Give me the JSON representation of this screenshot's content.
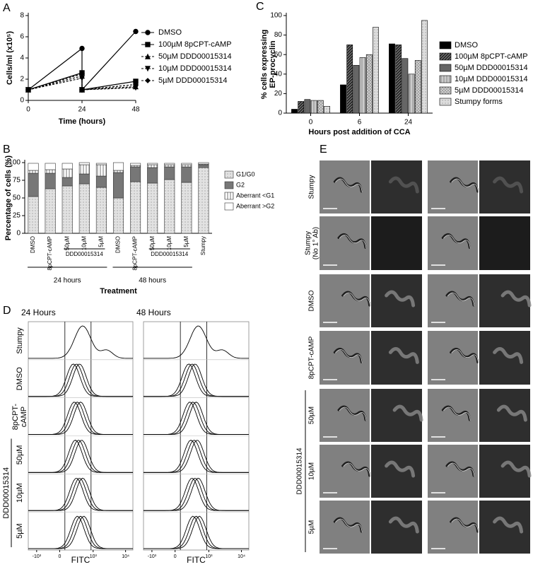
{
  "chart_data": [
    {
      "panel": "A",
      "type": "line",
      "xlabel": "Time (hours)",
      "ylabel": "Cells/ml (x10⁵)",
      "x": [
        0,
        24,
        24,
        48
      ],
      "xlim": [
        0,
        48
      ],
      "xticks": [
        0,
        24,
        48
      ],
      "ylim": [
        0,
        8
      ],
      "yticks": [
        0,
        2,
        4,
        6,
        8
      ],
      "legend": "right",
      "series": [
        {
          "name": "DMSO",
          "color": "#000000",
          "marker": "circle",
          "dashed": false,
          "values": [
            1,
            4.9,
            1,
            6.5
          ]
        },
        {
          "name": "100µM 8pCPT-cAMP",
          "color": "#000000",
          "marker": "square",
          "dashed": false,
          "values": [
            1,
            2.6,
            1,
            1.8
          ]
        },
        {
          "name": "50µM DDD00015314",
          "color": "#000000",
          "marker": "triangle-up",
          "dashed": true,
          "values": [
            1,
            2.3,
            1,
            1.3
          ]
        },
        {
          "name": "10µM DDD00015314",
          "color": "#000000",
          "marker": "triangle-down",
          "dashed": true,
          "values": [
            1,
            2.1,
            1,
            1.2
          ]
        },
        {
          "name": "5µM DDD00015314",
          "color": "#000000",
          "marker": "diamond",
          "dashed": true,
          "values": [
            1,
            2.5,
            1,
            1.5
          ]
        }
      ]
    },
    {
      "panel": "B",
      "type": "stacked_bar",
      "xlabel": "Treatment",
      "ylabel": "Percentage of cells (%)",
      "categories": [
        "DMSO",
        "8pCPT-cAMP",
        "50µM",
        "10µM",
        "5µM",
        "DMSO",
        "8pCPT-cAMP",
        "50µM",
        "10µM",
        "5µM",
        "Stumpy"
      ],
      "subgroup_labels": [
        "DDD00015314",
        "DDD00015314"
      ],
      "group_labels": [
        "24 hours",
        "48 hours"
      ],
      "ylim": [
        0,
        100
      ],
      "yticks": [
        0,
        25,
        50,
        75,
        100
      ],
      "legend": "right",
      "series": [
        {
          "name": "G1/G0",
          "color": "#e2e2e2",
          "hatch": "dots",
          "values": [
            52,
            63,
            67,
            70,
            65,
            50,
            73,
            71,
            76,
            72,
            93
          ]
        },
        {
          "name": "G2",
          "color": "#777777",
          "hatch": null,
          "values": [
            33,
            22,
            12,
            14,
            16,
            36,
            21,
            22,
            18,
            22,
            4
          ]
        },
        {
          "name": "Aberrant <G1",
          "color": "#ffffff",
          "hatch": "vertical",
          "values": [
            4,
            5,
            12,
            13,
            16,
            3,
            2,
            4,
            3,
            3,
            1
          ]
        },
        {
          "name": "Aberrant >G2",
          "color": "#ffffff",
          "hatch": null,
          "values": [
            10,
            9,
            8,
            3,
            2,
            11,
            3,
            2,
            2,
            2,
            2
          ]
        }
      ]
    },
    {
      "panel": "C",
      "type": "bar",
      "xlabel": "Hours post addition of CCA",
      "ylabel": [
        "% cells expressing",
        "EP-procyclin"
      ],
      "categories": [
        "0",
        "6",
        "24"
      ],
      "ylim": [
        0,
        100
      ],
      "yticks": [
        0,
        20,
        40,
        60,
        80,
        100
      ],
      "legend": "right",
      "series": [
        {
          "name": "DMSO",
          "color": "#000000",
          "hatch": null,
          "values": [
            4,
            29,
            71
          ]
        },
        {
          "name": "100µM 8pCPT-cAMP",
          "color": "#222222",
          "hatch": "diagonal",
          "values": [
            12,
            70,
            70
          ]
        },
        {
          "name": "50µM DDD00015314",
          "color": "#666666",
          "hatch": null,
          "values": [
            14,
            49,
            56
          ]
        },
        {
          "name": "10µM DDD00015314",
          "color": "#aaaaaa",
          "hatch": "vertical",
          "values": [
            13,
            57,
            40
          ]
        },
        {
          "name": "5µM DDD00015314",
          "color": "#999999",
          "hatch": "cross",
          "values": [
            13,
            60,
            54
          ]
        },
        {
          "name": "Stumpy forms",
          "color": "#dddddd",
          "hatch": "dots",
          "values": [
            7,
            88,
            95
          ]
        }
      ]
    }
  ],
  "panel_d": {
    "panel": "D",
    "columns": [
      "24 Hours",
      "48 Hours"
    ],
    "rows": [
      "Stumpy",
      "DMSO",
      [
        "8pCPT-",
        "cAMP"
      ],
      "50µM",
      "10µM",
      "5µM"
    ],
    "group_label": "DDD00015314",
    "xlabel": "FITC",
    "xtick_labels": [
      "-10³",
      "0",
      "10³",
      "10⁴"
    ]
  },
  "panel_e": {
    "panel": "E",
    "rows": [
      "Stumpy",
      [
        "Stumpy",
        "(No 1° Ab)"
      ],
      "DMSO",
      "8pCPT-cAMP",
      "50µM",
      "10µM",
      "5µM"
    ],
    "group_label": "DDD00015314"
  }
}
